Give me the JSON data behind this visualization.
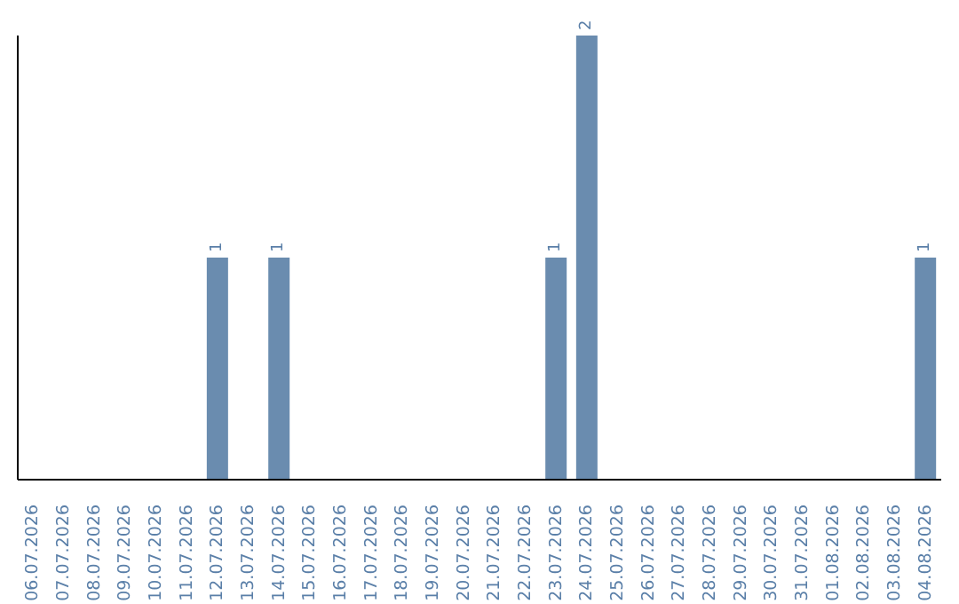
{
  "chart_data": {
    "type": "bar",
    "categories": [
      "06.07.2026",
      "07.07.2026",
      "08.07.2026",
      "09.07.2026",
      "10.07.2026",
      "11.07.2026",
      "12.07.2026",
      "13.07.2026",
      "14.07.2026",
      "15.07.2026",
      "16.07.2026",
      "17.07.2026",
      "18.07.2026",
      "19.07.2026",
      "20.07.2026",
      "21.07.2026",
      "22.07.2026",
      "23.07.2026",
      "24.07.2026",
      "25.07.2026",
      "26.07.2026",
      "27.07.2026",
      "28.07.2026",
      "29.07.2026",
      "30.07.2026",
      "31.07.2026",
      "01.08.2026",
      "02.08.2026",
      "03.08.2026",
      "04.08.2026"
    ],
    "values": [
      0,
      0,
      0,
      0,
      0,
      0,
      1,
      0,
      1,
      0,
      0,
      0,
      0,
      0,
      0,
      0,
      0,
      1,
      2,
      0,
      0,
      0,
      0,
      0,
      0,
      0,
      0,
      0,
      0,
      1
    ],
    "value_labels": [
      null,
      null,
      null,
      null,
      null,
      null,
      "1",
      null,
      "1",
      null,
      null,
      null,
      null,
      null,
      null,
      null,
      null,
      "1",
      "2",
      null,
      null,
      null,
      null,
      null,
      null,
      null,
      null,
      null,
      null,
      "1"
    ],
    "color": "#6a8caf",
    "grid": false,
    "legend": false
  }
}
